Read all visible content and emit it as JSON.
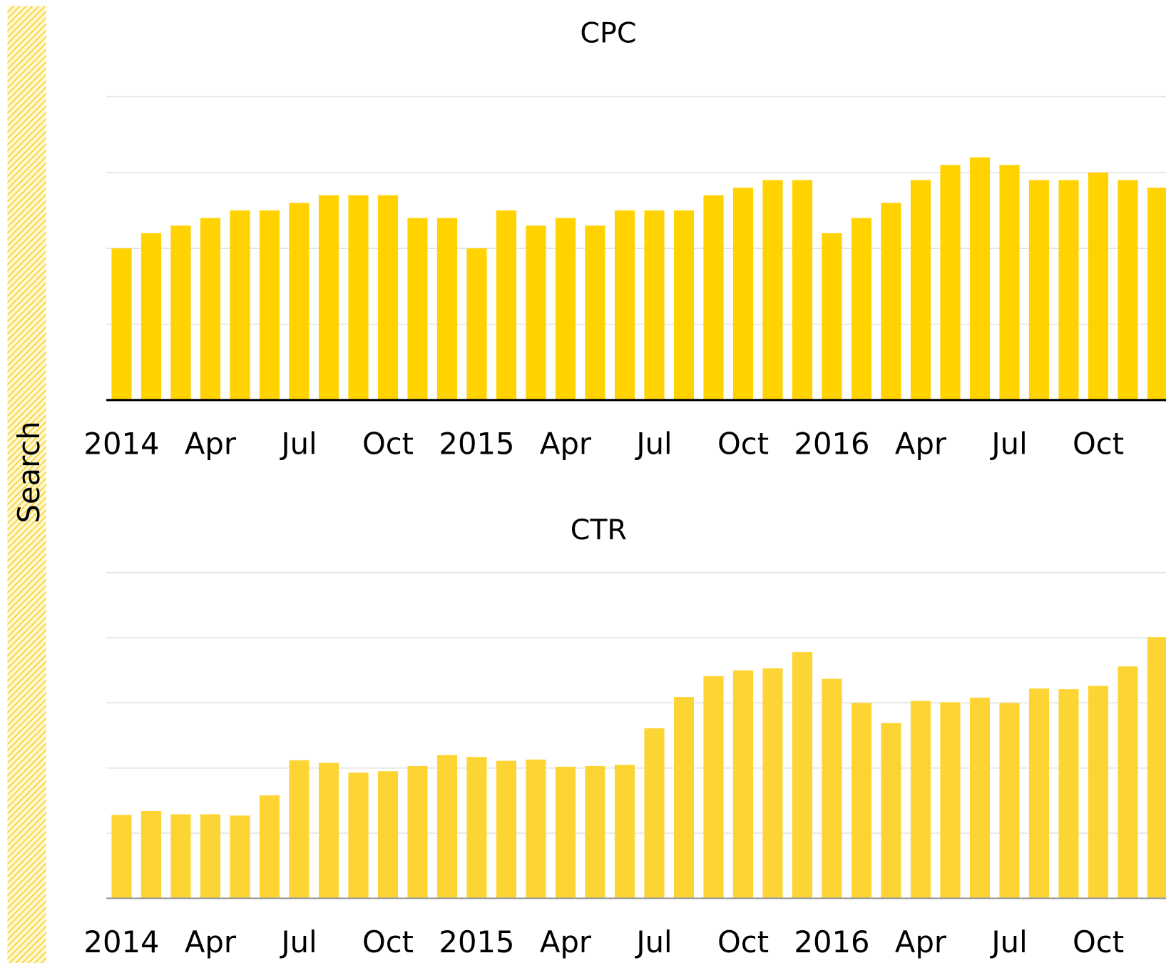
{
  "sidebar_label": "Search",
  "chart_data": [
    {
      "type": "bar",
      "title": "CPC",
      "color": "#ffd200",
      "grid": true,
      "categories": [
        "2014",
        null,
        null,
        "Apr",
        null,
        null,
        "Jul",
        null,
        null,
        "Oct",
        null,
        null,
        "2015",
        null,
        null,
        "Apr",
        null,
        null,
        "Jul",
        null,
        null,
        "Oct",
        null,
        null,
        "2016",
        null,
        null,
        "Apr",
        null,
        null,
        "Jul",
        null,
        null,
        "Oct",
        null,
        null
      ],
      "values": [
        2.0,
        2.2,
        2.3,
        2.4,
        2.5,
        2.5,
        2.6,
        2.7,
        2.7,
        2.7,
        2.4,
        2.4,
        2.0,
        2.5,
        2.3,
        2.4,
        2.3,
        2.5,
        2.5,
        2.5,
        2.7,
        2.8,
        2.9,
        2.9,
        2.2,
        2.4,
        2.6,
        2.9,
        3.1,
        3.2,
        3.1,
        2.9,
        2.9,
        3.0,
        2.9,
        2.8
      ],
      "ylim": [
        0,
        4
      ],
      "yticks": [
        0,
        1,
        2,
        3,
        4
      ]
    },
    {
      "type": "bar",
      "title": "CTR",
      "color": "#fcd535",
      "grid": true,
      "categories": [
        "2014",
        null,
        null,
        "Apr",
        null,
        null,
        "Jul",
        null,
        null,
        "Oct",
        null,
        null,
        "2015",
        null,
        null,
        "Apr",
        null,
        null,
        "Jul",
        null,
        null,
        "Oct",
        null,
        null,
        "2016",
        null,
        null,
        "Apr",
        null,
        null,
        "Jul",
        null,
        null,
        "Oct",
        null,
        null
      ],
      "values": [
        1.28,
        1.34,
        1.29,
        1.29,
        1.27,
        1.58,
        2.12,
        2.08,
        1.93,
        1.95,
        2.03,
        2.2,
        2.17,
        2.11,
        2.13,
        2.02,
        2.03,
        2.05,
        2.61,
        3.09,
        3.41,
        3.5,
        3.53,
        3.78,
        3.37,
        3.0,
        2.69,
        3.03,
        3.01,
        3.08,
        3.0,
        3.22,
        3.21,
        3.26,
        3.56,
        4.01
      ],
      "ylim": [
        0,
        5
      ],
      "yticks": [
        0,
        1,
        2,
        3,
        4,
        5
      ]
    }
  ]
}
